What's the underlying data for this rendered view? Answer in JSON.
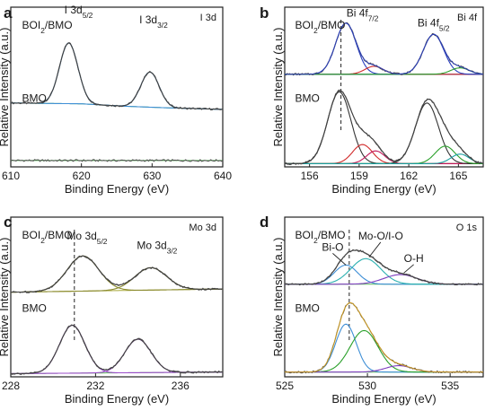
{
  "chart_data": [
    {
      "type": "line",
      "panel": "a",
      "element": "I 3d",
      "xlabel": "Binding Energy (eV)",
      "ylabel": "Relative Intensity (a.u.)",
      "xlim": [
        610,
        640
      ],
      "xticks": [
        610,
        620,
        630,
        640
      ],
      "x_reversed": false,
      "spectra": [
        {
          "label_main": "BOI",
          "label_sub": "2",
          "label_tail": "/BMO",
          "has_spectrum": true,
          "baseline": [
            [
              610,
              0.4
            ],
            [
              620,
              0.395
            ],
            [
              626,
              0.38
            ],
            [
              632,
              0.37
            ],
            [
              640,
              0.36
            ]
          ],
          "peaks": [
            {
              "center": 618.2,
              "height": 0.38,
              "width": 1.3,
              "color": "#3f8fd6",
              "label_main": "I 3d",
              "label_sub": "5/2",
              "label_x": 619.6,
              "label_y": 0.96
            },
            {
              "center": 629.7,
              "height": 0.22,
              "width": 1.3,
              "color": "#3f8fd6",
              "label_main": "I 3d",
              "label_sub": "3/2",
              "label_x": 630.2,
              "label_y": 0.9
            }
          ]
        },
        {
          "label_main": "BMO",
          "label_sub": "",
          "label_tail": "",
          "has_spectrum": true,
          "baseline": [
            [
              610,
              0.04
            ],
            [
              640,
              0.04
            ]
          ],
          "peaks": []
        }
      ]
    },
    {
      "type": "line",
      "panel": "b",
      "element": "Bi 4f",
      "xlabel": "Binding Energy (eV)",
      "ylabel": "Relative Intensity (a.u.)",
      "xlim": [
        154.5,
        166.5
      ],
      "xticks": [
        156,
        159,
        162,
        165
      ],
      "x_reversed": false,
      "dashed_line_x": 157.9,
      "spectra": [
        {
          "label_main": "BOI",
          "label_sub": "2",
          "label_tail": "/BMO",
          "has_spectrum": true,
          "baseline": [
            [
              154.5,
              0.58
            ],
            [
              166.5,
              0.58
            ]
          ],
          "peaks": [
            {
              "center": 158.2,
              "height": 0.32,
              "width": 0.62,
              "color": "#2a3fbf",
              "label_main": "Bi 4f",
              "label_sub": "7/2",
              "label_x": 159.2,
              "label_y": 0.94
            },
            {
              "center": 159.9,
              "height": 0.05,
              "width": 0.55,
              "color": "#d12b2b"
            },
            {
              "center": 163.5,
              "height": 0.25,
              "width": 0.62,
              "color": "#2a3fbf",
              "label_main": "Bi 4f",
              "label_sub": "5/2",
              "label_x": 163.5,
              "label_y": 0.88
            },
            {
              "center": 165.1,
              "height": 0.04,
              "width": 0.55,
              "color": "#2aa02a"
            }
          ]
        },
        {
          "label_main": "BMO",
          "label_sub": "",
          "label_tail": "",
          "has_spectrum": true,
          "baseline": [
            [
              154.5,
              0.02
            ],
            [
              166.5,
              0.02
            ]
          ],
          "peaks": [
            {
              "center": 157.8,
              "height": 0.45,
              "width": 0.7,
              "color": "#333333"
            },
            {
              "center": 159.2,
              "height": 0.12,
              "width": 0.6,
              "color": "#d12b2b"
            },
            {
              "center": 160.0,
              "height": 0.08,
              "width": 0.55,
              "color": "#c2185b"
            },
            {
              "center": 163.1,
              "height": 0.38,
              "width": 0.7,
              "color": "#333333"
            },
            {
              "center": 164.2,
              "height": 0.11,
              "width": 0.6,
              "color": "#2aa02a"
            },
            {
              "center": 165.1,
              "height": 0.06,
              "width": 0.55,
              "color": "#1aa0a0"
            }
          ]
        }
      ]
    },
    {
      "type": "line",
      "panel": "c",
      "element": "Mo 3d",
      "xlabel": "Binding Energy (eV)",
      "ylabel": "Relative Intensity (a.u.)",
      "xlim": [
        228,
        238
      ],
      "xticks": [
        228,
        232,
        236
      ],
      "x_reversed": false,
      "dashed_line_x": 231.0,
      "spectra": [
        {
          "label_main": "BOI",
          "label_sub": "2",
          "label_tail": "/BMO",
          "has_spectrum": true,
          "baseline": [
            [
              228,
              0.53
            ],
            [
              238,
              0.55
            ]
          ],
          "peaks": [
            {
              "center": 231.4,
              "height": 0.22,
              "width": 0.75,
              "color": "#8a8a2e",
              "label_main": "Mo 3d",
              "label_sub": "5/2",
              "label_x": 231.6,
              "label_y": 0.86
            },
            {
              "center": 234.6,
              "height": 0.14,
              "width": 0.75,
              "color": "#8a8a2e",
              "label_main": "Mo 3d",
              "label_sub": "3/2",
              "label_x": 234.9,
              "label_y": 0.8
            }
          ]
        },
        {
          "label_main": "BMO",
          "label_sub": "",
          "label_tail": "",
          "has_spectrum": true,
          "baseline": [
            [
              228,
              0.02
            ],
            [
              238,
              0.03
            ]
          ],
          "peaks": [
            {
              "center": 230.9,
              "height": 0.3,
              "width": 0.6,
              "color": "#9b4dca"
            },
            {
              "center": 234.0,
              "height": 0.21,
              "width": 0.62,
              "color": "#9b4dca"
            }
          ]
        }
      ]
    },
    {
      "type": "line",
      "panel": "d",
      "element": "O 1s",
      "xlabel": "Binding Energy (eV)",
      "ylabel": "Relative Intensity (a.u.)",
      "xlim": [
        525,
        537
      ],
      "xticks": [
        525,
        530,
        535
      ],
      "x_reversed": false,
      "dashed_line_x": 528.9,
      "spectra": [
        {
          "label_main": "BOI",
          "label_sub": "2",
          "label_tail": "/BMO",
          "has_spectrum": true,
          "baseline": [
            [
              525,
              0.58
            ],
            [
              537,
              0.58
            ]
          ],
          "peaks": [
            {
              "center": 528.7,
              "height": 0.12,
              "width": 0.7,
              "color": "#3f8fd6",
              "label_main": "Bi-O",
              "label_sub": "",
              "label_x": 527.9,
              "label_y": 0.79,
              "arrow_to": [
                528.7,
                0.7
              ]
            },
            {
              "center": 529.9,
              "height": 0.16,
              "width": 0.9,
              "color": "#2ab0b0",
              "label_main": "Mo-O/I-O",
              "label_sub": "",
              "label_x": 530.8,
              "label_y": 0.86,
              "arrow_to": [
                530.1,
                0.75
              ]
            },
            {
              "center": 532.0,
              "height": 0.06,
              "width": 1.0,
              "color": "#7f3fbf",
              "label_main": "O-H",
              "label_sub": "",
              "label_x": 532.8,
              "label_y": 0.72,
              "arrow_to": [
                532.2,
                0.65
              ]
            }
          ]
        },
        {
          "label_main": "BMO",
          "label_sub": "",
          "label_tail": "",
          "has_spectrum": true,
          "baseline": [
            [
              525,
              0.03
            ],
            [
              537,
              0.03
            ]
          ],
          "peaks": [
            {
              "center": 528.7,
              "height": 0.3,
              "width": 0.62,
              "color": "#3f8fd6"
            },
            {
              "center": 529.8,
              "height": 0.26,
              "width": 0.85,
              "color": "#2aa02a"
            },
            {
              "center": 531.9,
              "height": 0.04,
              "width": 0.8,
              "color": "#7f3fbf"
            }
          ]
        }
      ]
    }
  ],
  "colors": {
    "data_curve": "#555555",
    "envelope_bi": "#2a3fbf",
    "envelope_bmo_o": "#d9a21a",
    "baseline_i": "#6ab04c"
  }
}
